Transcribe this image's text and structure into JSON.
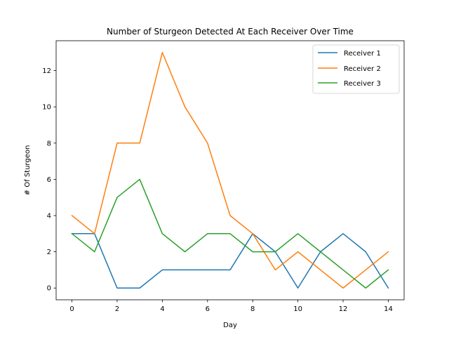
{
  "chart_data": {
    "type": "line",
    "title": "Number of Sturgeon Detected At Each Receiver Over Time",
    "xlabel": "Day",
    "ylabel": "# Of Sturgeon",
    "x": [
      0,
      1,
      2,
      3,
      4,
      5,
      6,
      7,
      8,
      9,
      10,
      11,
      12,
      13,
      14
    ],
    "xlim": [
      -0.7,
      14.7
    ],
    "ylim": [
      -0.65,
      13.65
    ],
    "xticks": [
      0,
      2,
      4,
      6,
      8,
      10,
      12,
      14
    ],
    "yticks": [
      0,
      2,
      4,
      6,
      8,
      10,
      12
    ],
    "grid": false,
    "legend_position": "top-right",
    "series": [
      {
        "name": "Receiver 1",
        "color": "#1f77b4",
        "values": [
          3,
          3,
          0,
          0,
          1,
          1,
          1,
          1,
          3,
          2,
          0,
          2,
          3,
          2,
          0
        ]
      },
      {
        "name": "Receiver 2",
        "color": "#ff7f0e",
        "values": [
          4,
          3,
          8,
          8,
          13,
          10,
          8,
          4,
          3,
          1,
          2,
          1,
          0,
          1,
          2
        ]
      },
      {
        "name": "Receiver 3",
        "color": "#2ca02c",
        "values": [
          3,
          2,
          5,
          6,
          3,
          2,
          3,
          3,
          2,
          2,
          3,
          2,
          1,
          0,
          1
        ]
      }
    ]
  }
}
